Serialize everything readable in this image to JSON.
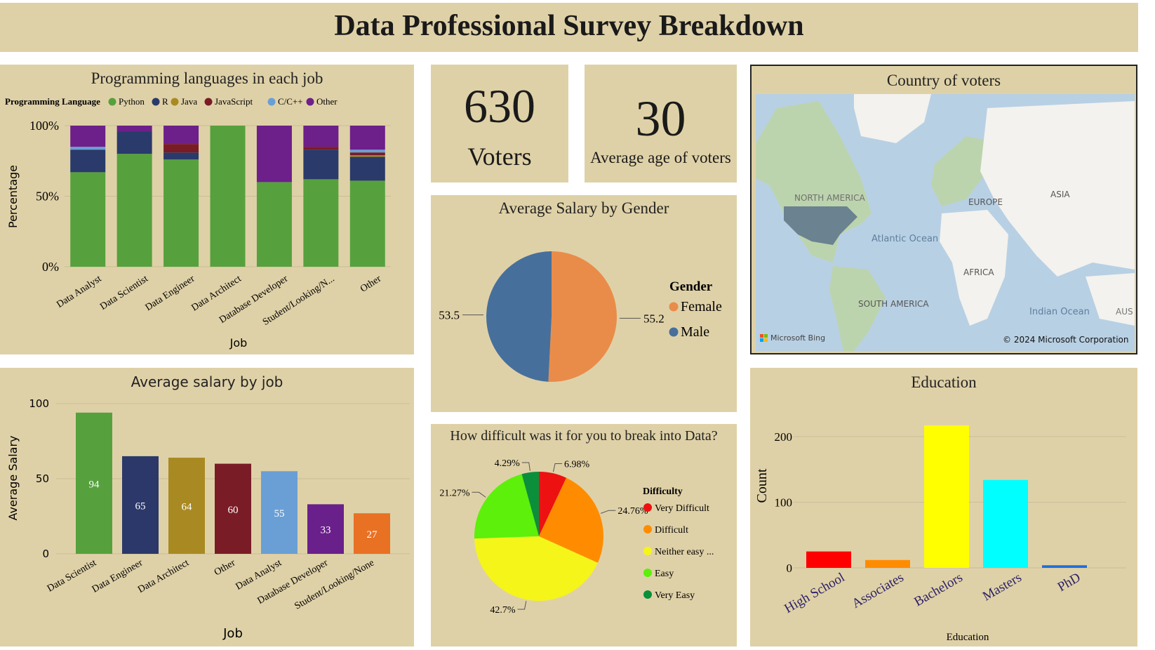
{
  "header": {
    "title": "Data Professional Survey Breakdown"
  },
  "kpis": {
    "voters": {
      "value": "630",
      "label": "Voters"
    },
    "age": {
      "value": "30",
      "label": "Average age of voters"
    }
  },
  "map": {
    "title": "Country of voters",
    "labels": {
      "north_america": "NORTH AMERICA",
      "europe": "EUROPE",
      "asia": "ASIA",
      "atlantic": "Atlantic Ocean",
      "africa": "AFRICA",
      "south_america": "SOUTH AMERICA",
      "indian": "Indian Ocean",
      "aus": "AUS"
    },
    "attribution": "Microsoft Bing",
    "copyright": "© 2024 Microsoft Corporation",
    "colors": {
      "water": "#b8d0e4",
      "land": "#f3f2ee",
      "green_land": "#bcd4ad",
      "highlight": "#6b8291"
    }
  },
  "chart_data": [
    {
      "id": "languages",
      "type": "bar",
      "stacked": true,
      "title": "Programming languages in each job",
      "legend_title": "Programming Language",
      "legend_position": "top-left",
      "xlabel": "Job",
      "ylabel": "Percentage",
      "yticks": [
        "0%",
        "50%",
        "100%"
      ],
      "ylim": [
        0,
        100
      ],
      "categories": [
        "Data Analyst",
        "Data Scientist",
        "Data Engineer",
        "Data Architect",
        "Database Developer",
        "Student/Looking/N...",
        "Other"
      ],
      "series": [
        {
          "name": "Python",
          "color": "#56a13d",
          "values": [
            67,
            80,
            76,
            100,
            60,
            62,
            61
          ]
        },
        {
          "name": "R",
          "color": "#2a3a6a",
          "values": [
            16,
            16,
            5,
            0,
            0,
            21,
            17
          ]
        },
        {
          "name": "Java",
          "color": "#a98a22",
          "values": [
            0,
            0,
            0,
            0,
            0,
            0,
            1
          ]
        },
        {
          "name": "JavaScript",
          "color": "#7a1c26",
          "values": [
            0,
            0,
            6,
            0,
            0,
            2,
            2
          ]
        },
        {
          "name": "C/C++",
          "color": "#6a9fd5",
          "values": [
            2,
            0,
            0,
            0,
            0,
            0,
            2
          ]
        },
        {
          "name": "Other",
          "color": "#6d1f8a",
          "values": [
            15,
            4,
            13,
            0,
            40,
            15,
            17
          ]
        }
      ]
    },
    {
      "id": "salary_gender",
      "type": "pie",
      "title": "Average Salary by Gender",
      "legend_title": "Gender",
      "legend_position": "right",
      "slices": [
        {
          "label": "Female",
          "value": 55.2,
          "color": "#e98c4a"
        },
        {
          "label": "Male",
          "value": 53.5,
          "color": "#476f9b"
        }
      ]
    },
    {
      "id": "salary_job",
      "type": "bar",
      "title": "Average salary by job",
      "xlabel": "Job",
      "ylabel": "Average Salary",
      "ylim": [
        0,
        100
      ],
      "yticks": [
        "0",
        "50",
        "100"
      ],
      "categories": [
        "Data Scientist",
        "Data Engineer",
        "Data Architect",
        "Other",
        "Data Analyst",
        "Database Developer",
        "Student/Looking/None"
      ],
      "values": [
        94,
        65,
        64,
        60,
        55,
        33,
        27
      ],
      "colors": [
        "#56a13d",
        "#2c3869",
        "#a98a22",
        "#7a1c26",
        "#6a9fd5",
        "#6a208a",
        "#e97124"
      ]
    },
    {
      "id": "difficulty",
      "type": "pie",
      "title": "How difficult was it for you to break into Data?",
      "legend_title": "Difficulty",
      "legend_position": "right",
      "slices": [
        {
          "label": "Very Difficult",
          "value": 6.98,
          "display": "6.98%",
          "color": "#ee1111"
        },
        {
          "label": "Difficult",
          "value": 24.76,
          "display": "24.76%",
          "color": "#ff8c00"
        },
        {
          "label": "Neither easy ...",
          "value": 42.7,
          "display": "42.7%",
          "color": "#f5f51a"
        },
        {
          "label": "Easy",
          "value": 21.27,
          "display": "21.27%",
          "color": "#5cf00a"
        },
        {
          "label": "Very Easy",
          "value": 4.29,
          "display": "4.29%",
          "color": "#0b8f3a"
        }
      ]
    },
    {
      "id": "education",
      "type": "bar",
      "title": "Education",
      "xlabel": "Education",
      "ylabel": "Count",
      "ylim": [
        0,
        240
      ],
      "yticks": [
        "0",
        "100",
        "200"
      ],
      "categories": [
        "High School",
        "Associates",
        "Bachelors",
        "Masters",
        "PhD"
      ],
      "values": [
        25,
        12,
        217,
        134,
        4
      ],
      "colors": [
        "#ff0000",
        "#ff8c00",
        "#ffff00",
        "#00ffff",
        "#1e6fe0"
      ]
    }
  ]
}
